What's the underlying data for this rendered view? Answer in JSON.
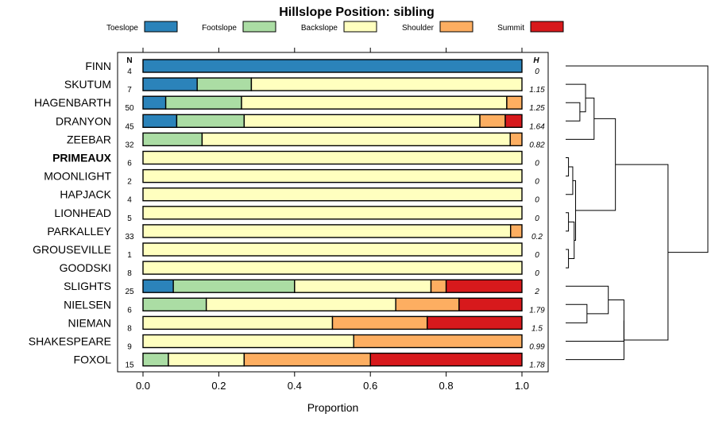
{
  "chart_data": {
    "type": "bar",
    "orientation": "horizontal",
    "stacked": true,
    "title": "Hillslope Position: sibling",
    "xlabel": "Proportion",
    "ylabel": "",
    "xlim": [
      0,
      1
    ],
    "x_ticks": [
      "0.0",
      "0.2",
      "0.4",
      "0.6",
      "0.8",
      "1.0"
    ],
    "n_header": "N",
    "h_header": "H",
    "legend_position": "top",
    "series": [
      {
        "name": "Toeslope",
        "color": "#2b83ba"
      },
      {
        "name": "Footslope",
        "color": "#abdda4"
      },
      {
        "name": "Backslope",
        "color": "#ffffbf"
      },
      {
        "name": "Shoulder",
        "color": "#fdae61"
      },
      {
        "name": "Summit",
        "color": "#d7191c"
      }
    ],
    "categories": [
      {
        "label": "FINN",
        "n": "4",
        "h": "0",
        "bold": false,
        "values": [
          1.0,
          0.0,
          0.0,
          0.0,
          0.0
        ]
      },
      {
        "label": "SKUTUM",
        "n": "7",
        "h": "1.15",
        "bold": false,
        "values": [
          0.143,
          0.143,
          0.714,
          0.0,
          0.0
        ]
      },
      {
        "label": "HAGENBARTH",
        "n": "50",
        "h": "1.25",
        "bold": false,
        "values": [
          0.06,
          0.2,
          0.7,
          0.04,
          0.0
        ]
      },
      {
        "label": "DRANYON",
        "n": "45",
        "h": "1.64",
        "bold": false,
        "values": [
          0.089,
          0.178,
          0.622,
          0.067,
          0.044
        ]
      },
      {
        "label": "ZEEBAR",
        "n": "32",
        "h": "0.82",
        "bold": false,
        "values": [
          0.0,
          0.156,
          0.813,
          0.031,
          0.0
        ]
      },
      {
        "label": "PRIMEAUX",
        "n": "6",
        "h": "0",
        "bold": true,
        "values": [
          0.0,
          0.0,
          1.0,
          0.0,
          0.0
        ]
      },
      {
        "label": "MOONLIGHT",
        "n": "2",
        "h": "0",
        "bold": false,
        "values": [
          0.0,
          0.0,
          1.0,
          0.0,
          0.0
        ]
      },
      {
        "label": "HAPJACK",
        "n": "4",
        "h": "0",
        "bold": false,
        "values": [
          0.0,
          0.0,
          1.0,
          0.0,
          0.0
        ]
      },
      {
        "label": "LIONHEAD",
        "n": "5",
        "h": "0",
        "bold": false,
        "values": [
          0.0,
          0.0,
          1.0,
          0.0,
          0.0
        ]
      },
      {
        "label": "PARKALLEY",
        "n": "33",
        "h": "0.2",
        "bold": false,
        "values": [
          0.0,
          0.0,
          0.97,
          0.03,
          0.0
        ]
      },
      {
        "label": "GROUSEVILLE",
        "n": "1",
        "h": "0",
        "bold": false,
        "values": [
          0.0,
          0.0,
          1.0,
          0.0,
          0.0
        ]
      },
      {
        "label": "GOODSKI",
        "n": "8",
        "h": "0",
        "bold": false,
        "values": [
          0.0,
          0.0,
          1.0,
          0.0,
          0.0
        ]
      },
      {
        "label": "SLIGHTS",
        "n": "25",
        "h": "2",
        "bold": false,
        "values": [
          0.08,
          0.32,
          0.36,
          0.04,
          0.2
        ]
      },
      {
        "label": "NIELSEN",
        "n": "6",
        "h": "1.79",
        "bold": false,
        "values": [
          0.0,
          0.167,
          0.5,
          0.167,
          0.167
        ]
      },
      {
        "label": "NIEMAN",
        "n": "8",
        "h": "1.5",
        "bold": false,
        "values": [
          0.0,
          0.0,
          0.5,
          0.25,
          0.25
        ]
      },
      {
        "label": "SHAKESPEARE",
        "n": "9",
        "h": "0.99",
        "bold": false,
        "values": [
          0.0,
          0.0,
          0.556,
          0.444,
          0.0
        ]
      },
      {
        "label": "FOXOL",
        "n": "15",
        "h": "1.78",
        "bold": false,
        "values": [
          0.0,
          0.067,
          0.2,
          0.333,
          0.4
        ]
      }
    ],
    "dendrogram": {
      "type": "hierarchical-clustering",
      "leaf_order": [
        "FINN",
        "SKUTUM",
        "HAGENBARTH",
        "DRANYON",
        "ZEEBAR",
        "PRIMEAUX",
        "MOONLIGHT",
        "HAPJACK",
        "LIONHEAD",
        "PARKALLEY",
        "GROUSEVILLE",
        "GOODSKI",
        "SLIGHTS",
        "NIELSEN",
        "NIEMAN",
        "SHAKESPEARE",
        "FOXOL"
      ],
      "merges": [
        {
          "a": "PRIMEAUX",
          "b": "MOONLIGHT",
          "height": 0.02
        },
        {
          "a": "LIONHEAD",
          "b": "PARKALLEY",
          "height": 0.02
        },
        {
          "a": "GROUSEVILLE",
          "b": "GOODSKI",
          "height": 0.02
        },
        {
          "a": "HAGENBARTH",
          "b": "DRANYON",
          "height": 0.1
        },
        {
          "a": "SKUTUM",
          "b": "HAGENBARTH",
          "height": 0.14
        },
        {
          "a": "PRIMEAUX",
          "b": "HAPJACK",
          "height": 0.05
        },
        {
          "a": "LIONHEAD",
          "b": "GROUSEVILLE",
          "height": 0.06
        },
        {
          "a": "SKUTUM",
          "b": "ZEEBAR",
          "height": 0.2
        },
        {
          "a": "PRIMEAUX",
          "b": "LIONHEAD",
          "height": 0.07
        },
        {
          "a": "SKUTUM",
          "b": "PRIMEAUX",
          "height": 0.35
        },
        {
          "a": "NIELSEN",
          "b": "NIEMAN",
          "height": 0.15
        },
        {
          "a": "SLIGHTS",
          "b": "NIELSEN",
          "height": 0.3
        },
        {
          "a": "SLIGHTS",
          "b": "SHAKESPEARE",
          "height": 0.41
        },
        {
          "a": "SLIGHTS",
          "b": "FOXOL",
          "height": 0.41
        },
        {
          "a": "SKUTUM",
          "b": "SLIGHTS",
          "height": 0.72
        },
        {
          "a": "FINN",
          "b": "SKUTUM",
          "height": 1.0
        }
      ]
    }
  }
}
